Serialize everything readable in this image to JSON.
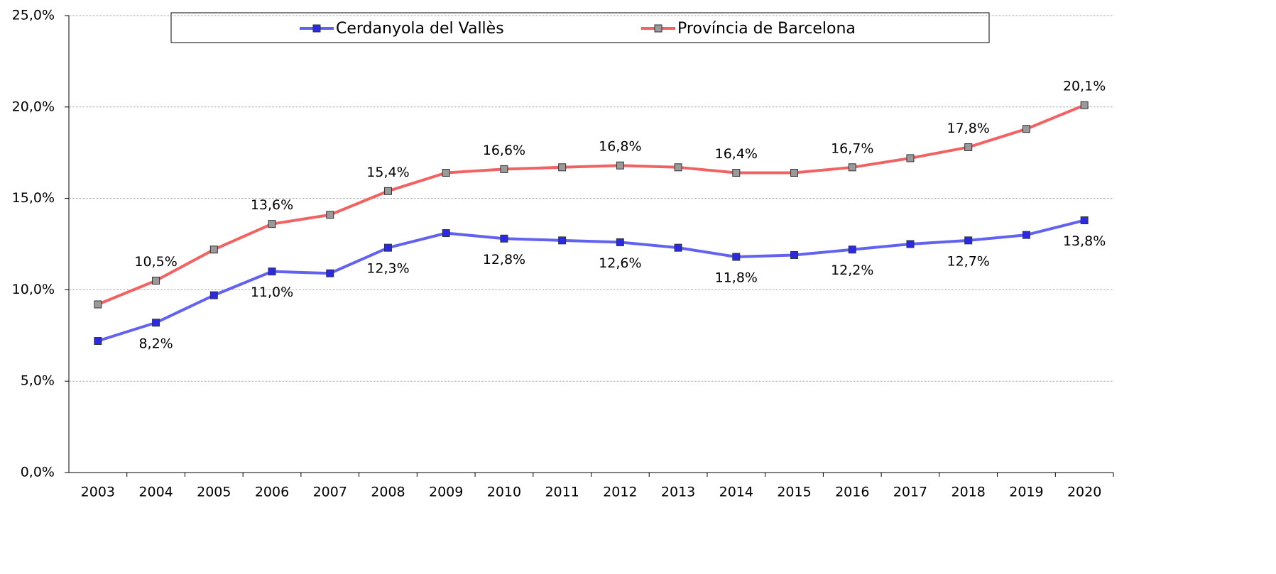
{
  "chart_data": {
    "type": "line",
    "categories": [
      "2003",
      "2004",
      "2005",
      "2006",
      "2007",
      "2008",
      "2009",
      "2010",
      "2011",
      "2012",
      "2013",
      "2014",
      "2015",
      "2016",
      "2017",
      "2018",
      "2019",
      "2020"
    ],
    "series": [
      {
        "name": "Cerdanyola del Vallès",
        "color": "#6262f2",
        "marker_color": "#2a2ae6",
        "label_position": "below",
        "values": [
          7.2,
          8.2,
          9.7,
          11.0,
          10.9,
          12.3,
          13.1,
          12.8,
          12.7,
          12.6,
          12.3,
          11.8,
          11.9,
          12.2,
          12.5,
          12.7,
          13.0,
          13.8
        ],
        "value_labels": [
          null,
          "8,2%",
          null,
          "11,0%",
          null,
          "12,3%",
          null,
          "12,8%",
          null,
          "12,6%",
          null,
          "11,8%",
          null,
          "12,2%",
          null,
          "12,7%",
          null,
          "13,8%"
        ]
      },
      {
        "name": "Província de Barcelona",
        "color": "#f26262",
        "marker_color": "#9a9a9a",
        "label_position": "above",
        "values": [
          9.2,
          10.5,
          12.2,
          13.6,
          14.1,
          15.4,
          16.4,
          16.6,
          16.7,
          16.8,
          16.7,
          16.4,
          16.4,
          16.7,
          17.2,
          17.8,
          18.8,
          20.1
        ],
        "value_labels": [
          null,
          "10,5%",
          null,
          "13,6%",
          null,
          "15,4%",
          null,
          "16,6%",
          null,
          "16,8%",
          null,
          "16,4%",
          null,
          "16,7%",
          null,
          "17,8%",
          null,
          "20,1%"
        ]
      }
    ],
    "ylim": [
      0,
      25
    ],
    "yticks": [
      {
        "value": 0,
        "label": "0,0%"
      },
      {
        "value": 5,
        "label": "5,0%"
      },
      {
        "value": 10,
        "label": "10,0%"
      },
      {
        "value": 15,
        "label": "15,0%"
      },
      {
        "value": 20,
        "label": "20,0%"
      },
      {
        "value": 25,
        "label": "25,0%"
      }
    ],
    "grid": true
  }
}
